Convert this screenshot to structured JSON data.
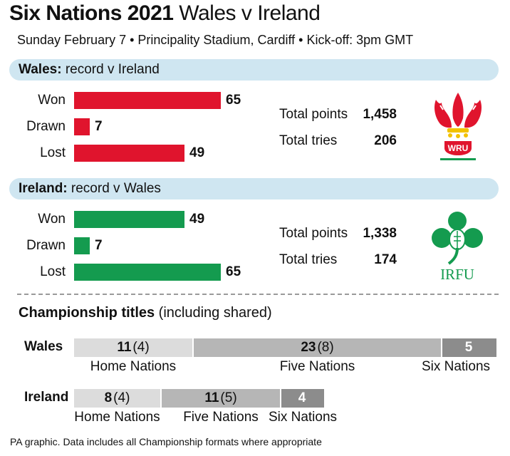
{
  "header": {
    "title_bold": "Six Nations 2021",
    "title_rest": " Wales v Ireland",
    "subtitle": "Sunday February 7 • Principality Stadium, Cardiff • Kick-off: 3pm GMT"
  },
  "colors": {
    "wales": "#e0142d",
    "ireland": "#149b4f",
    "band": "#cfe6f1",
    "home_nations": "#dcdcdc",
    "five_nations": "#b6b6b6",
    "six_nations": "#8c8c8c"
  },
  "logos": {
    "wales": "welsh-feathers-logo",
    "wales_text": "WRU",
    "ireland": "shamrock-logo",
    "ireland_text": "IRFU"
  },
  "chart_data": [
    {
      "type": "bar",
      "orientation": "horizontal",
      "title_bold": "Wales:",
      "title_rest": " record v Ireland",
      "categories": [
        "Won",
        "Drawn",
        "Lost"
      ],
      "values": [
        65,
        7,
        49
      ],
      "color": "#e0142d",
      "stats": [
        {
          "label": "Total points",
          "value": "1,458"
        },
        {
          "label": "Total tries",
          "value": "206"
        }
      ]
    },
    {
      "type": "bar",
      "orientation": "horizontal",
      "title_bold": "Ireland:",
      "title_rest": " record v Wales",
      "categories": [
        "Won",
        "Drawn",
        "Lost"
      ],
      "values": [
        49,
        7,
        65
      ],
      "color": "#149b4f",
      "stats": [
        {
          "label": "Total points",
          "value": "1,338"
        },
        {
          "label": "Total tries",
          "value": "174"
        }
      ]
    },
    {
      "type": "bar",
      "orientation": "horizontal",
      "stacked": true,
      "title_bold": "Championship titles",
      "title_rest": " (including shared)",
      "teams": [
        {
          "name": "Wales",
          "segments": [
            {
              "label": "Home Nations",
              "value": 11,
              "shared": "(4)"
            },
            {
              "label": "Five Nations",
              "value": 23,
              "shared": "(8)"
            },
            {
              "label": "Six Nations",
              "value": 5,
              "shared": ""
            }
          ]
        },
        {
          "name": "Ireland",
          "segments": [
            {
              "label": "Home Nations",
              "value": 8,
              "shared": "(4)"
            },
            {
              "label": "Five Nations",
              "value": 11,
              "shared": "(5)"
            },
            {
              "label": "Six Nations",
              "value": 4,
              "shared": ""
            }
          ]
        }
      ]
    }
  ],
  "footer": "PA graphic. Data includes all Championship formats where appropriate"
}
